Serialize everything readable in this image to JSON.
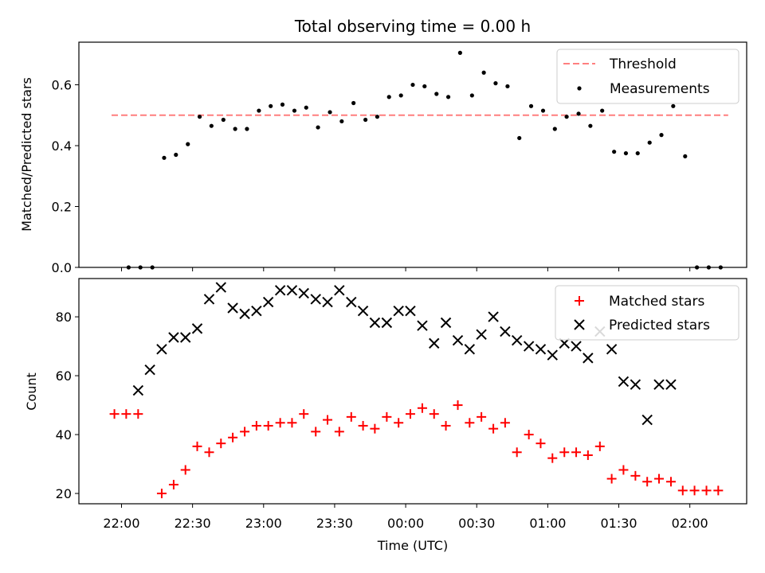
{
  "chart_data": [
    {
      "type": "scatter",
      "title": "Total observing time = 0.00 h",
      "xlabel": "",
      "ylabel": "Matched/Predicted stars",
      "x_unit": "time (UTC, hours after midnight; negative = previous day)",
      "xlim": [
        -2.3,
        2.4
      ],
      "ylim": [
        0,
        0.74
      ],
      "yticks": [
        "0.0",
        "0.2",
        "0.4",
        "0.6"
      ],
      "ytick_values": [
        0,
        0.2,
        0.4,
        0.6
      ],
      "grid": false,
      "legend": "top-right",
      "threshold": {
        "name": "Threshold",
        "value": 0.5,
        "x_range": [
          -2.07,
          2.27
        ],
        "color": "#ff7f7f",
        "style": "dashed"
      },
      "series": [
        {
          "name": "Measurements",
          "color": "#000000",
          "marker": "dot",
          "x": [
            -1.95,
            -1.867,
            -1.783,
            -1.7,
            -1.617,
            -1.533,
            -1.45,
            -1.367,
            -1.283,
            -1.2,
            -1.117,
            -1.033,
            -0.95,
            -0.867,
            -0.783,
            -0.7,
            -0.617,
            -0.533,
            -0.45,
            -0.367,
            -0.283,
            -0.2,
            -0.117,
            -0.033,
            0.05,
            0.133,
            0.217,
            0.3,
            0.383,
            0.467,
            0.55,
            0.633,
            0.717,
            0.8,
            0.883,
            0.967,
            1.05,
            1.133,
            1.217,
            1.3,
            1.383,
            1.467,
            1.55,
            1.633,
            1.717,
            1.8,
            1.883,
            1.967,
            2.05,
            2.133,
            2.217
          ],
          "y": [
            0.0,
            0.0,
            0.0,
            0.36,
            0.37,
            0.405,
            0.495,
            0.465,
            0.485,
            0.455,
            0.455,
            0.515,
            0.53,
            0.535,
            0.515,
            0.525,
            0.46,
            0.51,
            0.48,
            0.54,
            0.485,
            0.495,
            0.56,
            0.565,
            0.6,
            0.595,
            0.57,
            0.56,
            0.705,
            0.565,
            0.64,
            0.605,
            0.595,
            0.425,
            0.53,
            0.515,
            0.455,
            0.495,
            0.505,
            0.465,
            0.515,
            0.38,
            0.375,
            0.375,
            0.41,
            0.435,
            0.53,
            0.365,
            0.0,
            0.0,
            0.0
          ]
        }
      ]
    },
    {
      "type": "scatter",
      "title": "",
      "xlabel": "Time (UTC)",
      "ylabel": "Count",
      "x_unit": "time (UTC, hours after midnight; negative = previous day)",
      "xlim": [
        -2.3,
        2.4
      ],
      "ylim": [
        16.5,
        93
      ],
      "xticks": [
        "22:00",
        "22:30",
        "23:00",
        "23:30",
        "00:00",
        "00:30",
        "01:00",
        "01:30",
        "02:00"
      ],
      "xtick_values": [
        -2,
        -1.5,
        -1,
        -0.5,
        0,
        0.5,
        1,
        1.5,
        2
      ],
      "yticks": [
        "20",
        "40",
        "60",
        "80"
      ],
      "ytick_values": [
        20,
        40,
        60,
        80
      ],
      "grid": false,
      "legend": "top-right",
      "series": [
        {
          "name": "Matched stars",
          "color": "#ff0000",
          "marker": "plus",
          "x": [
            -2.05,
            -1.967,
            -1.883,
            -1.717,
            -1.633,
            -1.55,
            -1.467,
            -1.383,
            -1.3,
            -1.217,
            -1.133,
            -1.05,
            -0.967,
            -0.883,
            -0.8,
            -0.717,
            -0.633,
            -0.55,
            -0.467,
            -0.383,
            -0.3,
            -0.217,
            -0.133,
            -0.05,
            0.033,
            0.117,
            0.2,
            0.283,
            0.367,
            0.45,
            0.533,
            0.617,
            0.7,
            0.783,
            0.867,
            0.95,
            1.033,
            1.117,
            1.2,
            1.283,
            1.367,
            1.45,
            1.533,
            1.617,
            1.7,
            1.783,
            1.867,
            1.95,
            2.033,
            2.117,
            2.2
          ],
          "y": [
            47,
            47,
            47,
            20,
            23,
            28,
            36,
            34,
            37,
            39,
            41,
            43,
            43,
            44,
            44,
            47,
            41,
            45,
            41,
            46,
            43,
            42,
            46,
            44,
            47,
            49,
            47,
            43,
            50,
            44,
            46,
            42,
            44,
            34,
            40,
            37,
            32,
            34,
            34,
            33,
            36,
            25,
            28,
            26,
            24,
            25,
            24,
            21,
            21,
            21,
            21
          ]
        },
        {
          "name": "Predicted stars",
          "color": "#000000",
          "marker": "x",
          "x": [
            -1.883,
            -1.8,
            -1.717,
            -1.633,
            -1.55,
            -1.467,
            -1.383,
            -1.3,
            -1.217,
            -1.133,
            -1.05,
            -0.967,
            -0.883,
            -0.8,
            -0.717,
            -0.633,
            -0.55,
            -0.467,
            -0.383,
            -0.3,
            -0.217,
            -0.133,
            -0.05,
            0.033,
            0.117,
            0.2,
            0.283,
            0.367,
            0.45,
            0.533,
            0.617,
            0.7,
            0.783,
            0.867,
            0.95,
            1.033,
            1.117,
            1.2,
            1.283,
            1.367,
            1.45,
            1.533,
            1.617,
            1.7,
            1.783,
            1.867
          ],
          "y": [
            55,
            62,
            69,
            73,
            73,
            76,
            86,
            90,
            83,
            81,
            82,
            85,
            89,
            89,
            88,
            86,
            85,
            89,
            85,
            82,
            78,
            78,
            82,
            82,
            77,
            71,
            78,
            72,
            69,
            74,
            80,
            75,
            72,
            70,
            69,
            67,
            71,
            70,
            66,
            75,
            69,
            58,
            57,
            45,
            57,
            57
          ]
        }
      ]
    }
  ]
}
